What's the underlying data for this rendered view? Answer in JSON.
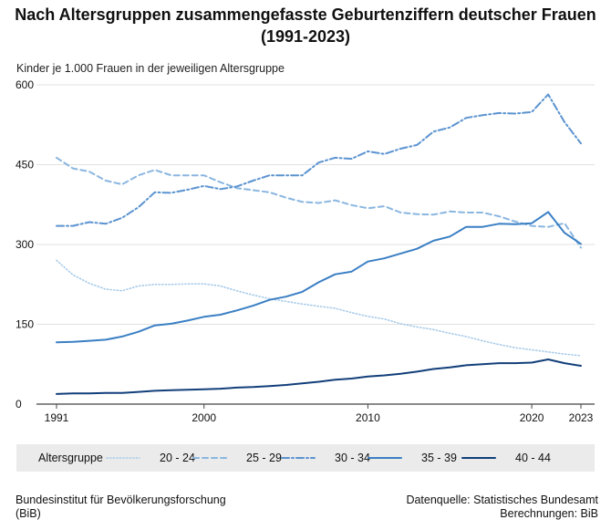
{
  "title_line1": "Nach Altersgruppen zusammengefasste Geburtenziffern deutscher Frauen",
  "title_line2": "(1991-2023)",
  "footer": {
    "left_line1": "Bundesinstitut für Bevölkerungsforschung",
    "left_line2": "(BiB)",
    "right_line1": "Datenquelle: Statistisches Bundesamt",
    "right_line2": "Berechnungen: BiB"
  },
  "chart_data": {
    "type": "line",
    "ylabel": "Kinder je 1.000 Frauen in der jeweiligen Altersgruppe",
    "xlabel": "",
    "ylim": [
      0,
      600
    ],
    "yticks": [
      "600",
      "450",
      "300",
      "150",
      "0"
    ],
    "xticks": [
      "1991",
      "2000",
      "2010",
      "2020",
      "2023"
    ],
    "legend_title": "Altersgruppe",
    "legend_position": "bottom",
    "grid": "horizontal",
    "x": [
      1991,
      1992,
      1993,
      1994,
      1995,
      1996,
      1997,
      1998,
      1999,
      2000,
      2001,
      2002,
      2003,
      2004,
      2005,
      2006,
      2007,
      2008,
      2009,
      2010,
      2011,
      2012,
      2013,
      2014,
      2015,
      2016,
      2017,
      2018,
      2019,
      2020,
      2021,
      2022,
      2023
    ],
    "series": [
      {
        "name": "20 - 24",
        "color": "#a8cbe9",
        "dash": "dotted",
        "values": [
          270,
          243,
          227,
          216,
          213,
          222,
          225,
          225,
          226,
          226,
          222,
          213,
          205,
          198,
          193,
          188,
          184,
          180,
          172,
          165,
          160,
          151,
          145,
          140,
          133,
          127,
          119,
          112,
          106,
          102,
          98,
          94,
          91
        ]
      },
      {
        "name": "25 - 29",
        "color": "#8ab6e0",
        "dash": "dashed",
        "values": [
          463,
          443,
          437,
          420,
          413,
          430,
          440,
          430,
          430,
          430,
          417,
          406,
          402,
          398,
          388,
          380,
          378,
          383,
          374,
          368,
          372,
          360,
          357,
          356,
          362,
          360,
          360,
          353,
          343,
          335,
          333,
          340,
          294
        ]
      },
      {
        "name": "30 - 34",
        "color": "#5b93d0",
        "dash": "dashdot",
        "values": [
          335,
          335,
          342,
          339,
          350,
          370,
          398,
          397,
          403,
          410,
          404,
          409,
          420,
          430,
          430,
          430,
          454,
          463,
          461,
          475,
          470,
          480,
          487,
          512,
          520,
          538,
          543,
          547,
          546,
          549,
          582,
          530,
          490
        ]
      },
      {
        "name": "35 - 39",
        "color": "#3a7fc4",
        "dash": "solid",
        "values": [
          116,
          117,
          119,
          121,
          127,
          136,
          148,
          151,
          157,
          164,
          168,
          176,
          185,
          196,
          202,
          211,
          229,
          244,
          249,
          268,
          274,
          283,
          292,
          307,
          315,
          333,
          333,
          339,
          338,
          340,
          361,
          322,
          301
        ]
      },
      {
        "name": "40 - 44",
        "color": "#123f7a",
        "dash": "solid",
        "values": [
          19,
          20,
          20,
          21,
          21,
          23,
          25,
          26,
          27,
          28,
          29,
          31,
          32,
          34,
          36,
          39,
          42,
          46,
          48,
          52,
          54,
          57,
          61,
          66,
          69,
          73,
          75,
          77,
          77,
          78,
          84,
          77,
          72
        ]
      }
    ]
  }
}
